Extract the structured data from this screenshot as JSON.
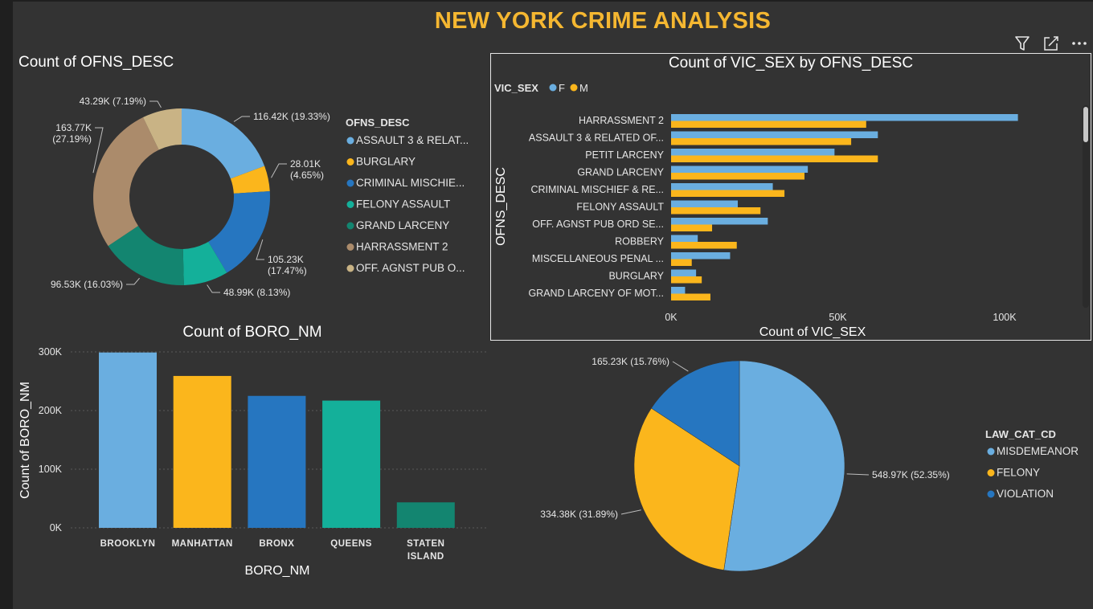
{
  "dashboard": {
    "title": "NEW YORK CRIME ANALYSIS",
    "toolbar": {
      "filter_icon": "filter-icon",
      "focus_icon": "focus-mode-icon",
      "more_icon": "more-options-icon"
    }
  },
  "colors": {
    "background": "#333333",
    "title": "#f5b731",
    "light_blue": "#6aaee0",
    "yellow": "#fbb61c",
    "blue": "#2676c0",
    "teal": "#14b09a",
    "dark_teal": "#138570",
    "tan": "#ab8b6b",
    "light_tan": "#c9b385"
  },
  "chart_data": [
    {
      "id": "ofns-donut",
      "type": "pie",
      "variant": "donut",
      "title": "Count of OFNS_DESC",
      "legend_title": "OFNS_DESC",
      "legend_position": "right",
      "slices": [
        {
          "name": "ASSAULT 3 & RELAT...",
          "value": 116420,
          "label": "116.42K (19.33%)",
          "color": "#6aaee0"
        },
        {
          "name": "BURGLARY",
          "value": 28010,
          "label": "28.01K (4.65%)",
          "color": "#fbb61c"
        },
        {
          "name": "CRIMINAL MISCHIE...",
          "value": 105230,
          "label": "105.23K (17.47%)",
          "color": "#2676c0"
        },
        {
          "name": "FELONY ASSAULT",
          "value": 48990,
          "label": "48.99K (8.13%)",
          "color": "#14b09a"
        },
        {
          "name": "GRAND LARCENY",
          "value": 96530,
          "label": "96.53K (16.03%)",
          "color": "#138570"
        },
        {
          "name": "HARRASSMENT 2",
          "value": 163770,
          "label": "163.77K (27.19%)",
          "color": "#ab8b6b"
        },
        {
          "name": "OFF. AGNST PUB O...",
          "value": 43290,
          "label": "43.29K (7.19%)",
          "color": "#c9b385"
        }
      ]
    },
    {
      "id": "vic-sex-bars",
      "type": "bar",
      "orientation": "horizontal",
      "title": "Count of VIC_SEX by OFNS_DESC",
      "legend_title": "VIC_SEX",
      "legend_position": "top-left",
      "xlabel": "Count of VIC_SEX",
      "ylabel": "OFNS_DESC",
      "xlim": [
        0,
        100000
      ],
      "x_ticks": [
        {
          "value": 0,
          "label": "0K"
        },
        {
          "value": 50000,
          "label": "50K"
        },
        {
          "value": 100000,
          "label": "100K"
        }
      ],
      "categories": [
        "HARRASSMENT 2",
        "ASSAULT 3 & RELATED OF...",
        "PETIT LARCENY",
        "GRAND LARCENY",
        "CRIMINAL MISCHIEF & RE...",
        "FELONY ASSAULT",
        "OFF. AGNST PUB ORD SE...",
        "ROBBERY",
        "MISCELLANEOUS PENAL ...",
        "BURGLARY",
        "GRAND LARCENY OF MOT..."
      ],
      "series": [
        {
          "name": "F",
          "color": "#6aaee0",
          "values": [
            104000,
            62000,
            49000,
            41000,
            30500,
            20000,
            29000,
            8000,
            17700,
            7500,
            4200
          ]
        },
        {
          "name": "M",
          "color": "#fbb61c",
          "values": [
            58500,
            54000,
            62000,
            40000,
            34000,
            26800,
            12300,
            19700,
            6200,
            9200,
            11800
          ]
        }
      ]
    },
    {
      "id": "boro-bars",
      "type": "bar",
      "orientation": "vertical",
      "title": "Count of BORO_NM",
      "xlabel": "BORO_NM",
      "ylabel": "Count of BORO_NM",
      "ylim": [
        0,
        300000
      ],
      "grid": true,
      "y_ticks": [
        {
          "value": 0,
          "label": "0K"
        },
        {
          "value": 100000,
          "label": "100K"
        },
        {
          "value": 200000,
          "label": "200K"
        },
        {
          "value": 300000,
          "label": "300K"
        }
      ],
      "categories": [
        [
          "BROOKLYN"
        ],
        [
          "MANHATTAN"
        ],
        [
          "BRONX"
        ],
        [
          "QUEENS"
        ],
        [
          "STATEN",
          "ISLAND"
        ]
      ],
      "values": [
        299000,
        259000,
        225000,
        217000,
        43500
      ],
      "colors": [
        "#6aaee0",
        "#fbb61c",
        "#2676c0",
        "#14b09a",
        "#138570"
      ]
    },
    {
      "id": "law-cat-pie",
      "type": "pie",
      "legend_title": "LAW_CAT_CD",
      "legend_position": "right",
      "slices": [
        {
          "name": "MISDEMEANOR",
          "value": 548970,
          "label": "548.97K (52.35%)",
          "color": "#6aaee0"
        },
        {
          "name": "FELONY",
          "value": 334380,
          "label": "334.38K (31.89%)",
          "color": "#fbb61c"
        },
        {
          "name": "VIOLATION",
          "value": 165230,
          "label": "165.23K (15.76%)",
          "color": "#2676c0"
        }
      ]
    }
  ]
}
